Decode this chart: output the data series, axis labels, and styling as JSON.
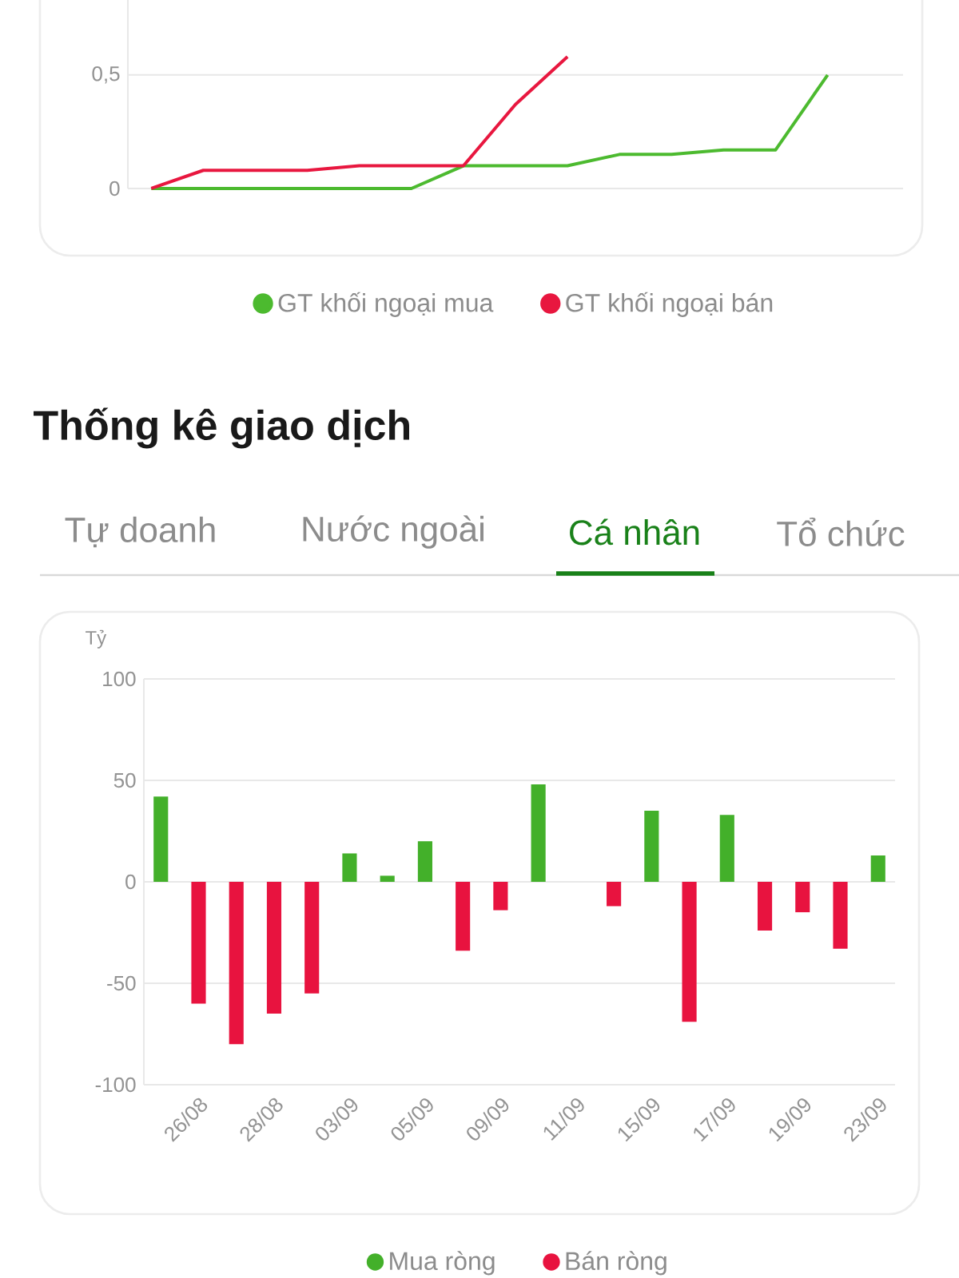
{
  "chart_data": [
    {
      "type": "line",
      "categories": [
        null,
        null,
        null,
        null,
        null,
        null,
        null,
        null,
        null,
        null,
        null,
        null,
        null,
        null,
        null
      ],
      "series": [
        {
          "name": "GT khối ngoại mua",
          "color": "#4cba2f",
          "values": [
            0,
            0,
            0,
            0,
            0,
            0,
            0.1,
            0.1,
            0.1,
            0.15,
            0.15,
            0.17,
            0.17,
            0.5,
            null
          ]
        },
        {
          "name": "GT khối ngoại bán",
          "color": "#e8173f",
          "values": [
            0,
            0.08,
            0.08,
            0.08,
            0.1,
            0.1,
            0.1,
            0.37,
            0.58,
            null,
            null,
            null,
            null,
            null,
            null
          ]
        }
      ],
      "ylim": [
        0,
        0.83
      ],
      "yticks": [
        0,
        {
          "value": 0.5,
          "label": "0,5"
        }
      ],
      "grid": "y",
      "legend": "bottom",
      "marker": "none",
      "line_style": "solid"
    },
    {
      "type": "bar",
      "title": "Thống kê giao dịch",
      "annotations": [
        "Tự doanh",
        "Nước ngoài",
        "Cá nhân",
        "Tổ chức"
      ],
      "ylabel": "Tỷ",
      "categories": [
        null,
        "26/08",
        null,
        "28/08",
        null,
        "03/09",
        null,
        "05/09",
        null,
        "09/09",
        null,
        "11/09",
        null,
        "15/09",
        null,
        "17/09",
        null,
        "19/09",
        null,
        "23/09"
      ],
      "series": [
        {
          "name": "Mua ròng",
          "color": "#43b02a",
          "values": [
            42,
            null,
            null,
            null,
            null,
            14,
            3,
            20,
            null,
            null,
            48,
            null,
            null,
            35,
            null,
            33,
            null,
            null,
            null,
            13
          ]
        },
        {
          "name": "Bán ròng",
          "color": "#e8133f",
          "values": [
            null,
            -60,
            -80,
            -65,
            -55,
            null,
            null,
            null,
            -34,
            -14,
            null,
            null,
            -12,
            null,
            -69,
            null,
            -24,
            -15,
            -33,
            null
          ]
        }
      ],
      "ylim": [
        -100,
        100
      ],
      "yticks": [
        -100,
        -50,
        0,
        50,
        100
      ],
      "grid": "y",
      "legend": "bottom"
    }
  ]
}
